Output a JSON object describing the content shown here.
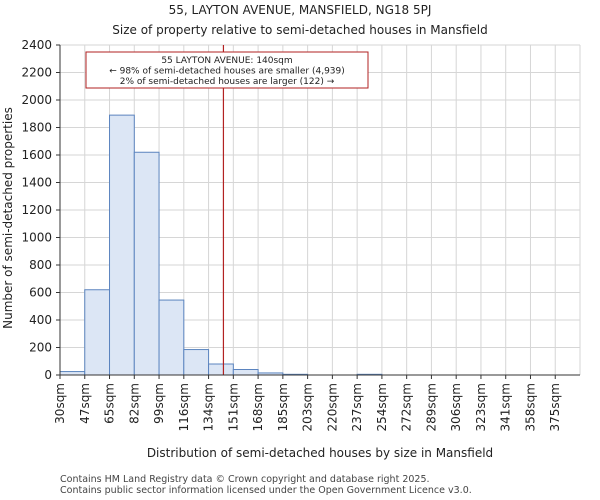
{
  "chart_data": {
    "type": "bar",
    "title": "55, LAYTON AVENUE, MANSFIELD, NG18 5PJ",
    "subtitle": "Size of property relative to semi-detached houses in Mansfield",
    "xlabel": "Distribution of semi-detached houses by size in Mansfield",
    "ylabel": "Number of semi-detached properties",
    "categories": [
      "30sqm",
      "47sqm",
      "65sqm",
      "82sqm",
      "99sqm",
      "116sqm",
      "134sqm",
      "151sqm",
      "168sqm",
      "185sqm",
      "203sqm",
      "220sqm",
      "237sqm",
      "254sqm",
      "272sqm",
      "289sqm",
      "306sqm",
      "323sqm",
      "341sqm",
      "358sqm",
      "375sqm"
    ],
    "values": [
      25,
      620,
      1890,
      1620,
      545,
      185,
      80,
      40,
      15,
      5,
      0,
      0,
      5,
      0,
      0,
      0,
      0,
      0,
      0,
      0,
      0
    ],
    "ylim": [
      0,
      2400
    ],
    "yticks": [
      0,
      200,
      400,
      600,
      800,
      1000,
      1200,
      1400,
      1600,
      1800,
      2000,
      2200,
      2400
    ],
    "grid": true,
    "bar_color": "#dce6f5",
    "bar_edge_color": "#5b84bf",
    "marker": {
      "value_index": 6.6,
      "color": "#b22222"
    },
    "annotation": {
      "lines": [
        "55 LAYTON AVENUE: 140sqm",
        "← 98% of semi-detached houses are smaller (4,939)",
        "2% of semi-detached houses are larger (122) →"
      ]
    }
  },
  "footer": {
    "line1": "Contains HM Land Registry data © Crown copyright and database right 2025.",
    "line2": "Contains public sector information licensed under the Open Government Licence v3.0."
  }
}
